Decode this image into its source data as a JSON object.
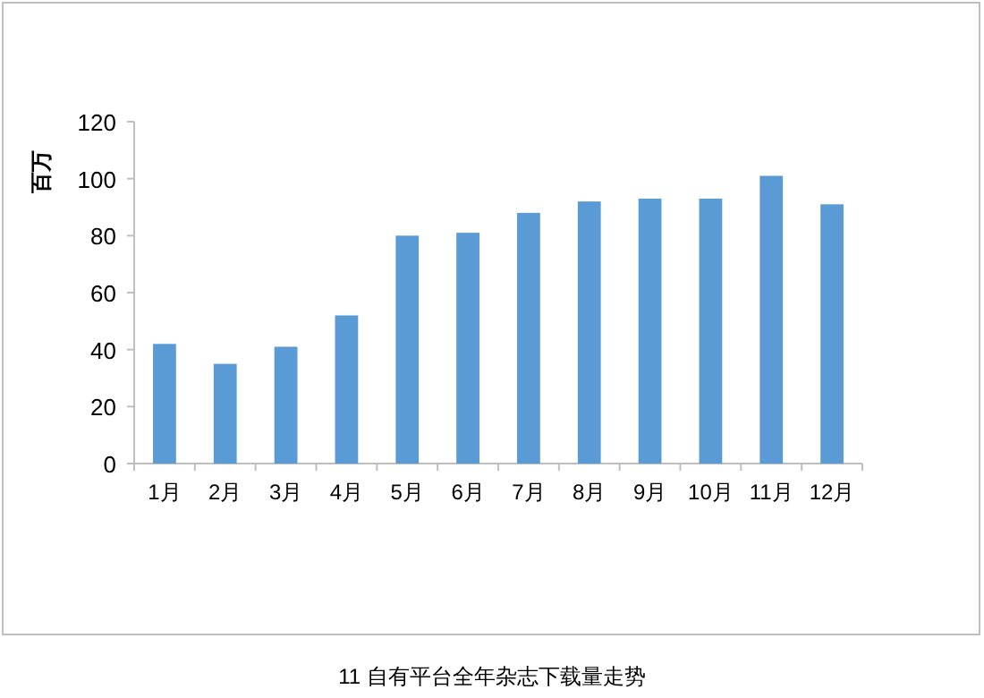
{
  "chart_data": {
    "type": "bar",
    "title": "11 自有平台全年杂志下载量走势",
    "ylabel": "百万",
    "categories": [
      "1月",
      "2月",
      "3月",
      "4月",
      "5月",
      "6月",
      "7月",
      "8月",
      "9月",
      "10月",
      "11月",
      "12月"
    ],
    "values": [
      42,
      35,
      41,
      52,
      80,
      81,
      88,
      92,
      93,
      93,
      101,
      91
    ],
    "color": "#5b9bd5",
    "ylim": [
      0,
      120
    ],
    "yticks": [
      0,
      20,
      40,
      60,
      80,
      100,
      120
    ],
    "grid": false
  }
}
